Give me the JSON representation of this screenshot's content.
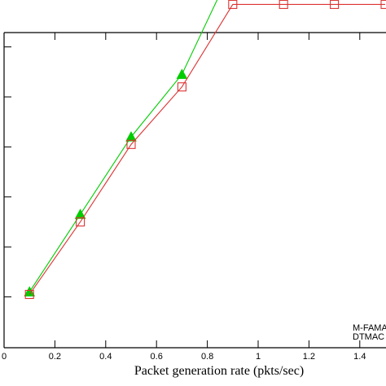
{
  "chart_data": {
    "type": "line",
    "xlabel": "Packet generation rate (pkts/sec)",
    "ylabel": "",
    "title": "",
    "xlim": [
      0,
      1.5
    ],
    "x_ticks": [
      "0",
      "0.2",
      "0.4",
      "0.6",
      "0.8",
      "1",
      "1.2",
      "1.4"
    ],
    "grid": false,
    "legend_position": "bottom-right",
    "series": [
      {
        "name": "M-FAMA",
        "color": "#00cc00",
        "marker": "filled-triangle",
        "x": [
          0.1,
          0.3,
          0.5,
          0.7,
          0.9,
          1.1,
          1.3,
          1.5
        ],
        "y": [
          1.1,
          2.65,
          4.2,
          5.45,
          7.6,
          7.6,
          7.6,
          7.6
        ]
      },
      {
        "name": "DTMAC",
        "color": "#dd3333",
        "marker": "open-square",
        "x": [
          0.1,
          0.3,
          0.5,
          0.7,
          0.9,
          1.1,
          1.3,
          1.5
        ],
        "y": [
          1.05,
          2.5,
          4.05,
          5.2,
          6.85,
          6.85,
          6.85,
          6.85
        ]
      }
    ]
  }
}
